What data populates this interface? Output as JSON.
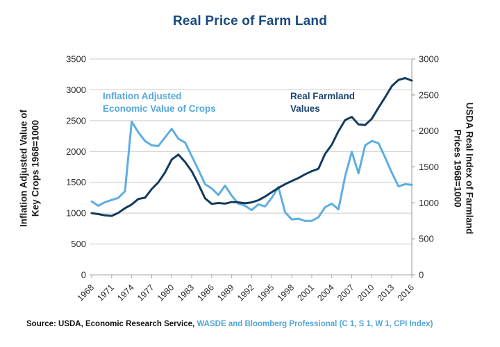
{
  "title": "Real Price of Farm Land",
  "source": {
    "label_black": "Source: USDA, Economic Research Service,",
    "label_blue": "WASDE  and Bloomberg Professional (C 1, S 1, W 1, CPI Index)"
  },
  "colors": {
    "title": "#17497E",
    "crops_line": "#5FADE0",
    "farmland_line": "#133A5E",
    "crops_label": "#55A7DC",
    "farmland_label": "#1A4472",
    "gridline": "#CBCBCB",
    "axis_line": "#A6A6A6",
    "tick_text": "#2B2B2B"
  },
  "chart_data": {
    "type": "line",
    "title": "Real Price of Farm Land",
    "grid": true,
    "x": [
      1968,
      1969,
      1970,
      1971,
      1972,
      1973,
      1974,
      1975,
      1976,
      1977,
      1978,
      1979,
      1980,
      1981,
      1982,
      1983,
      1984,
      1985,
      1986,
      1987,
      1988,
      1989,
      1990,
      1991,
      1992,
      1993,
      1994,
      1995,
      1996,
      1997,
      1998,
      1999,
      2000,
      2001,
      2002,
      2003,
      2004,
      2005,
      2006,
      2007,
      2008,
      2009,
      2010,
      2011,
      2012,
      2013,
      2014,
      2015,
      2016
    ],
    "x_axis": {
      "min": 1968,
      "max": 2016,
      "tick_years": [
        1968,
        1971,
        1974,
        1977,
        1980,
        1983,
        1986,
        1989,
        1992,
        1995,
        1998,
        2001,
        2004,
        2007,
        2010,
        2013,
        2016
      ]
    },
    "left_axis": {
      "label": "Inflation Adjusted Value of Key Crops 1968=1000",
      "label_lines": [
        "Inflation Adjusted Value of",
        "Key Crops 1968=1000"
      ],
      "min": 0,
      "max": 3500,
      "tick_step": 500,
      "ticks": [
        0,
        500,
        1000,
        1500,
        2000,
        2500,
        3000,
        3500
      ]
    },
    "right_axis": {
      "label": "USDA Real Index of Farmland Prices 1968=1000",
      "label_lines": [
        "USDA Real Index of Farmland",
        "Prices 1968=1000"
      ],
      "min": 0,
      "max": 3000,
      "tick_step": 500,
      "ticks": [
        0,
        500,
        1000,
        1500,
        2000,
        2500,
        3000
      ]
    },
    "series": [
      {
        "name": "Inflation Adjusted Economic Value of Crops",
        "annotation_lines": [
          "Inflation Adjusted",
          "Economic Value of Crops"
        ],
        "axis": "right",
        "color": "#5FADE0",
        "values": [
          1020,
          960,
          1010,
          1040,
          1070,
          1160,
          2130,
          1980,
          1860,
          1800,
          1790,
          1910,
          2030,
          1890,
          1840,
          1650,
          1460,
          1260,
          1200,
          1110,
          1240,
          1100,
          990,
          960,
          900,
          980,
          950,
          1070,
          1220,
          870,
          770,
          780,
          750,
          750,
          800,
          940,
          990,
          910,
          1370,
          1710,
          1410,
          1800,
          1860,
          1830,
          1630,
          1420,
          1230,
          1260,
          1250
        ]
      },
      {
        "name": "Real Farmland Values",
        "annotation_lines": [
          "Real Farmland",
          "Values"
        ],
        "axis": "left",
        "color": "#133A5E",
        "values": [
          1000,
          985,
          965,
          955,
          1005,
          1080,
          1140,
          1230,
          1250,
          1390,
          1500,
          1660,
          1870,
          1950,
          1830,
          1680,
          1470,
          1240,
          1150,
          1165,
          1155,
          1180,
          1175,
          1160,
          1175,
          1210,
          1270,
          1340,
          1410,
          1470,
          1520,
          1570,
          1630,
          1680,
          1720,
          1960,
          2110,
          2330,
          2510,
          2560,
          2440,
          2430,
          2530,
          2710,
          2880,
          3060,
          3160,
          3190,
          3150
        ]
      }
    ]
  }
}
